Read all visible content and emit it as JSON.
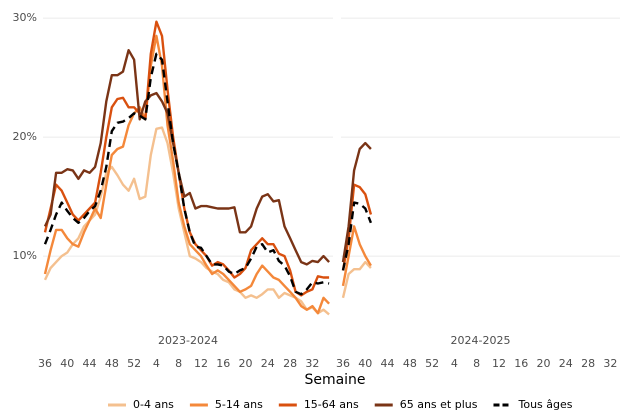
{
  "chart_data": {
    "type": "line",
    "x_label": "Semaine",
    "facets": [
      "2023-2024",
      "2024-2025"
    ],
    "categories": [
      36,
      null,
      null,
      null,
      40,
      null,
      null,
      null,
      44,
      null,
      null,
      null,
      48,
      null,
      null,
      null,
      52,
      null,
      null,
      null,
      4,
      null,
      null,
      null,
      8,
      null,
      null,
      null,
      12,
      null,
      null,
      null,
      16,
      null,
      null,
      null,
      20,
      null,
      null,
      null,
      24,
      null,
      null,
      null,
      28,
      null,
      null,
      null,
      32,
      null,
      null,
      null
    ],
    "ylim": [
      4.8,
      31.1
    ],
    "yticks": [
      {
        "value": 10,
        "label": "10%"
      },
      {
        "value": 20,
        "label": "20%"
      },
      {
        "value": 30,
        "label": "30%"
      }
    ],
    "grid": true,
    "legend": "bottom",
    "series": [
      {
        "name": "0-4 ans",
        "color": "#f4c08f",
        "values": [
          [
            8,
            9,
            9.5,
            10,
            10.3,
            11,
            11.5,
            12.5,
            13,
            13.5,
            15,
            17,
            17.5,
            16.8,
            16,
            15.5,
            16.5,
            14.8,
            15,
            18.5,
            20.7,
            20.8,
            19.5,
            17,
            14,
            12,
            10,
            9.8,
            9.5,
            9,
            8.7,
            8.5,
            8,
            7.8,
            7.2,
            7,
            6.5,
            6.7,
            6.5,
            6.8,
            7.2,
            7.2,
            6.5,
            6.9,
            6.7,
            6.5,
            6.2,
            5.5,
            5.7,
            5.2,
            5.5,
            5.1
          ],
          [
            6.5,
            8.5,
            8.9,
            8.9,
            9.5,
            9,
            null,
            null,
            null,
            null,
            null,
            null,
            null,
            null,
            null,
            null,
            null,
            null,
            null,
            null,
            null,
            null,
            null,
            null,
            null,
            null,
            null,
            null,
            null,
            null,
            null,
            null,
            null,
            null,
            null,
            null,
            null,
            null,
            null,
            null,
            null,
            null,
            null,
            null,
            null,
            null,
            null,
            null,
            null,
            null,
            null,
            null
          ]
        ]
      },
      {
        "name": "5-14 ans",
        "color": "#f4883a",
        "values": [
          [
            8.5,
            10.5,
            12.2,
            12.2,
            11.5,
            11,
            10.8,
            12,
            13,
            14,
            13.2,
            16,
            18.5,
            19,
            19.2,
            21,
            22,
            22.5,
            21.5,
            26,
            28.5,
            26,
            21,
            18,
            14.5,
            12.5,
            11,
            10.5,
            10,
            9.2,
            8.5,
            8.8,
            8.5,
            8,
            7.5,
            7,
            7.2,
            7.5,
            8.5,
            9.2,
            8.7,
            8.2,
            8,
            7.5,
            7,
            6.5,
            5.8,
            5.5,
            5.8,
            5.2,
            6.5,
            6
          ],
          [
            7.5,
            10,
            12.5,
            11,
            10,
            9.2,
            null,
            null,
            null,
            null,
            null,
            null,
            null,
            null,
            null,
            null,
            null,
            null,
            null,
            null,
            null,
            null,
            null,
            null,
            null,
            null,
            null,
            null,
            null,
            null,
            null,
            null,
            null,
            null,
            null,
            null,
            null,
            null,
            null,
            null,
            null,
            null,
            null,
            null,
            null,
            null,
            null,
            null,
            null,
            null,
            null,
            null
          ]
        ]
      },
      {
        "name": "15-64 ans",
        "color": "#d9500f",
        "values": [
          [
            12,
            14,
            16,
            15.5,
            14.5,
            13.5,
            13,
            13.5,
            14,
            14.5,
            17,
            20,
            22.5,
            23.2,
            23.3,
            22.5,
            22.5,
            22,
            21.5,
            27,
            29.7,
            28.5,
            24,
            20,
            17,
            14,
            12,
            11,
            10.5,
            10,
            9.2,
            9.5,
            9.3,
            8.8,
            8.2,
            8.5,
            9,
            10.5,
            11,
            11.5,
            11,
            11,
            10.2,
            10,
            8.8,
            7,
            6.7,
            7,
            7.2,
            8.3,
            8.2,
            8.2
          ],
          [
            8.8,
            11.5,
            16,
            15.8,
            15.2,
            13.5,
            null,
            null,
            null,
            null,
            null,
            null,
            null,
            null,
            null,
            null,
            null,
            null,
            null,
            null,
            null,
            null,
            null,
            null,
            null,
            null,
            null,
            null,
            null,
            null,
            null,
            null,
            null,
            null,
            null,
            null,
            null,
            null,
            null,
            null,
            null,
            null,
            null,
            null,
            null,
            null,
            null,
            null,
            null,
            null,
            null,
            null
          ]
        ]
      },
      {
        "name": "65 ans et plus",
        "color": "#7a3416",
        "values": [
          [
            12.5,
            13.5,
            17,
            17,
            17.3,
            17.2,
            16.5,
            17.2,
            17,
            17.5,
            19.5,
            23,
            25.2,
            25.2,
            25.5,
            27.3,
            26.5,
            21.5,
            23,
            23.5,
            23.7,
            23,
            22,
            19.5,
            17,
            15,
            15.3,
            14,
            14.2,
            14.2,
            14.1,
            14,
            14,
            14,
            14.1,
            12,
            12,
            12.5,
            14,
            15,
            15.2,
            14.6,
            14.7,
            12.5,
            11.5,
            10.5,
            9.5,
            9.3,
            9.6,
            9.5,
            10,
            9.5
          ],
          [
            9.5,
            12.5,
            17.2,
            19,
            19.5,
            19,
            null,
            null,
            null,
            null,
            null,
            null,
            null,
            null,
            null,
            null,
            null,
            null,
            null,
            null,
            null,
            null,
            null,
            null,
            null,
            null,
            null,
            null,
            null,
            null,
            null,
            null,
            null,
            null,
            null,
            null,
            null,
            null,
            null,
            null,
            null,
            null,
            null,
            null,
            null,
            null,
            null,
            null,
            null,
            null,
            null,
            null
          ]
        ]
      },
      {
        "name": "Tous âges",
        "color": "#000000",
        "dashed": true,
        "values": [
          [
            11,
            12.2,
            13.5,
            14.5,
            13.8,
            13.2,
            12.8,
            13.2,
            13.8,
            14.2,
            15.5,
            17.5,
            20.5,
            21.2,
            21.3,
            21.6,
            22,
            21.8,
            21.5,
            25,
            27,
            26.5,
            23,
            19.5,
            17,
            14,
            12,
            10.8,
            10.7,
            10,
            9.3,
            9.3,
            9.2,
            8.7,
            8.5,
            8.8,
            9,
            9.8,
            10.8,
            11,
            10.3,
            10.5,
            9.6,
            9.2,
            8.3,
            7,
            6.8,
            7.2,
            7.8,
            7.7,
            7.8,
            7.7
          ],
          [
            8.8,
            11,
            14.5,
            14.4,
            14,
            12.8,
            null,
            null,
            null,
            null,
            null,
            null,
            null,
            null,
            null,
            null,
            null,
            null,
            null,
            null,
            null,
            null,
            null,
            null,
            null,
            null,
            null,
            null,
            null,
            null,
            null,
            null,
            null,
            null,
            null,
            null,
            null,
            null,
            null,
            null,
            null,
            null,
            null,
            null,
            null,
            null,
            null,
            null,
            null,
            null,
            null,
            null
          ]
        ]
      }
    ]
  }
}
